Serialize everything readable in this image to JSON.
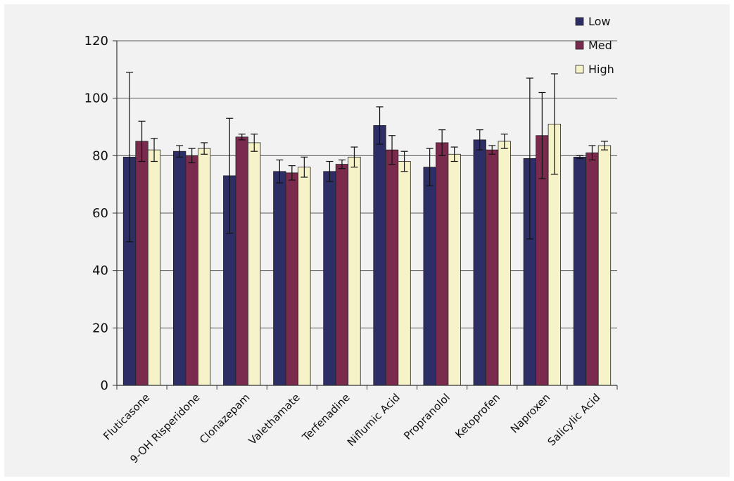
{
  "chart_data": {
    "type": "bar",
    "title": "",
    "xlabel": "",
    "ylabel": "",
    "ylim": [
      0,
      120
    ],
    "yticks": [
      0,
      20,
      40,
      60,
      80,
      100,
      120
    ],
    "grid": "horizontal",
    "legend_position": "top-right",
    "categories": [
      "Fluticasone",
      "9-OH Risperidone",
      "Clonazepam",
      "Valethamate",
      "Terfenadine",
      "Niflumic Acid",
      "Propranolol",
      "Ketoprofen",
      "Naproxen",
      "Salicylic Acid"
    ],
    "series": [
      {
        "name": "Low",
        "color": "#2e2e66",
        "values": [
          79.5,
          81.5,
          73,
          74.5,
          74.5,
          90.5,
          76,
          85.5,
          79,
          79.5
        ],
        "errors": [
          29.5,
          2,
          20,
          4,
          3.5,
          6.5,
          6.5,
          3.5,
          28,
          0.5
        ]
      },
      {
        "name": "Med",
        "color": "#7a2a4d",
        "values": [
          85,
          80,
          86.5,
          74,
          77,
          82,
          84.5,
          82,
          87,
          81
        ],
        "errors": [
          7,
          2.5,
          1,
          2.5,
          1.5,
          5,
          4.5,
          1.5,
          15,
          2.5
        ]
      },
      {
        "name": "High",
        "color": "#f7f3c9",
        "values": [
          82,
          82.5,
          84.5,
          76,
          79.5,
          78,
          80.5,
          85,
          91,
          83.5
        ],
        "errors": [
          4,
          2,
          3,
          3.5,
          3.5,
          3.5,
          2.5,
          2.5,
          17.5,
          1.5
        ]
      }
    ]
  }
}
